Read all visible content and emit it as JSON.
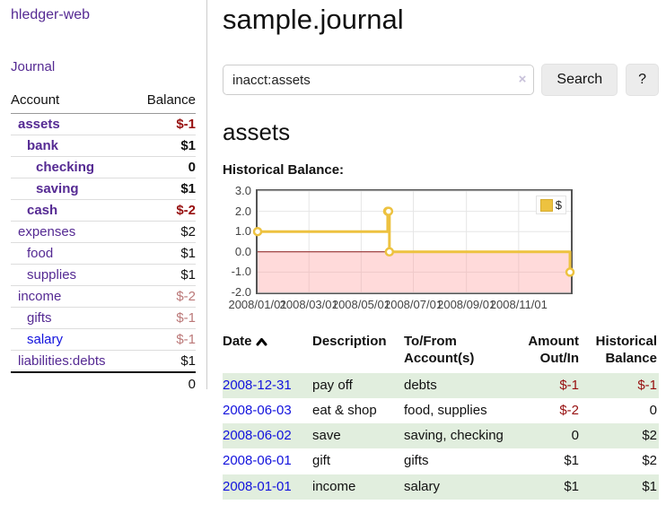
{
  "colors": {
    "accent_purple": "#552a93",
    "link_blue": "#1212dd",
    "negative_strong": "#970f0f",
    "negative_soft": "#bb7878",
    "row_green": "#e1eede",
    "chart_gold": "#edc240",
    "negative_region": "#ff9696",
    "zero_line": "#8b1a1a"
  },
  "sidebar": {
    "app_title": "hledger-web",
    "nav_journal": "Journal",
    "col_account": "Account",
    "col_balance": "Balance",
    "accounts": [
      {
        "name": "assets",
        "balance": "$-1",
        "indent": 1,
        "bold": true,
        "negative": "strong"
      },
      {
        "name": "bank",
        "balance": "$1",
        "indent": 2,
        "bold": true
      },
      {
        "name": "checking",
        "balance": "0",
        "indent": 3,
        "bold": true
      },
      {
        "name": "saving",
        "balance": "$1",
        "indent": 3,
        "bold": true
      },
      {
        "name": "cash",
        "balance": "$-2",
        "indent": 2,
        "bold": true,
        "negative": "strong"
      },
      {
        "name": "expenses",
        "balance": "$2",
        "indent": 1
      },
      {
        "name": "food",
        "balance": "$1",
        "indent": 2
      },
      {
        "name": "supplies",
        "balance": "$1",
        "indent": 2
      },
      {
        "name": "income",
        "balance": "$-2",
        "indent": 1,
        "negative": "soft"
      },
      {
        "name": "gifts",
        "balance": "$-1",
        "indent": 2,
        "negative": "soft"
      },
      {
        "name": "salary",
        "balance": "$-1",
        "indent": 2,
        "negative": "soft",
        "link_style": "unvisited"
      },
      {
        "name": "liabilities:debts",
        "balance": "$1",
        "indent": 1
      }
    ],
    "total": "0"
  },
  "header": {
    "title": "sample.journal"
  },
  "search": {
    "value": "inacct:assets",
    "clear_icon": "×",
    "button_label": "Search",
    "help_label": "?"
  },
  "main": {
    "heading": "assets",
    "chart_label": "Historical Balance:"
  },
  "chart_data": {
    "type": "line",
    "line_style": "steps",
    "title": "Historical Balance:",
    "x_range": [
      "2008-01-01",
      "2009-01-01"
    ],
    "ylim": [
      -2,
      3
    ],
    "y_ticks": [
      "3.0",
      "2.0",
      "1.0",
      "0.0",
      "-1.0",
      "-2.0"
    ],
    "x_ticks": [
      "2008/01/01",
      "2008/03/01",
      "2008/05/01",
      "2008/07/01",
      "2008/09/01",
      "2008/11/01"
    ],
    "grid": true,
    "legend": {
      "label": "$",
      "position": "top-right"
    },
    "series": [
      {
        "name": "$",
        "color": "#edc240",
        "points": [
          [
            "2008-01-01",
            1
          ],
          [
            "2008-06-01",
            2
          ],
          [
            "2008-06-02",
            2
          ],
          [
            "2008-06-03",
            0
          ],
          [
            "2008-12-31",
            -1
          ]
        ]
      }
    ]
  },
  "transactions": {
    "headers": {
      "date": "Date",
      "description": "Description",
      "account": "To/From Account(s)",
      "amount": "Amount Out/In",
      "balance": "Historical Balance"
    },
    "rows": [
      {
        "date": "2008-12-31",
        "description": "pay off",
        "accounts": "debts",
        "amount": "$-1",
        "balance": "$-1"
      },
      {
        "date": "2008-06-03",
        "description": "eat & shop",
        "accounts": "food, supplies",
        "amount": "$-2",
        "balance": "0"
      },
      {
        "date": "2008-06-02",
        "description": "save",
        "accounts": "saving, checking",
        "amount": "0",
        "balance": "$2"
      },
      {
        "date": "2008-06-01",
        "description": "gift",
        "accounts": "gifts",
        "amount": "$1",
        "balance": "$2"
      },
      {
        "date": "2008-01-01",
        "description": "income",
        "accounts": "salary",
        "amount": "$1",
        "balance": "$1"
      }
    ]
  }
}
